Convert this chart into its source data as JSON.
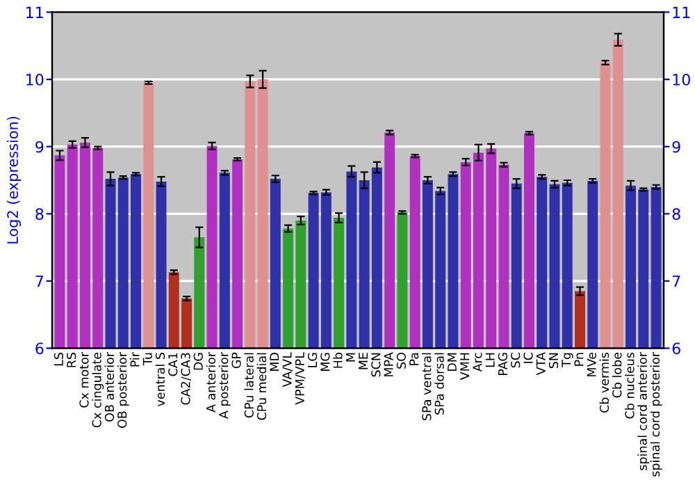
{
  "chart_data": {
    "type": "bar",
    "ylabel": "Log2 (expression)",
    "categories": [
      "LS",
      "RS",
      "Cx motor",
      "Cx cingulate",
      "OB anterior",
      "OB posterior",
      "Pir",
      "Tu",
      "ventral S",
      "CA1",
      "CA2/CA3",
      "DG",
      "A anterior",
      "A posterior",
      "GP",
      "CPu lateral",
      "CPu medial",
      "MD",
      "VA/VL",
      "VPM/VPL",
      "LG",
      "MG",
      "Hb",
      "M",
      "ME",
      "SCN",
      "MPA",
      "SO",
      "Pa",
      "SPa ventral",
      "SPa dorsal",
      "DM",
      "VMH",
      "Arc",
      "LH",
      "PAG",
      "SC",
      "IC",
      "VTA",
      "SN",
      "Tg",
      "Pn",
      "MVe",
      "Cb vermis",
      "Cb lobe",
      "Cb nucleus",
      "spinal cord anterior",
      "spinal cord posterior"
    ],
    "values": [
      8.87,
      9.03,
      9.06,
      8.98,
      8.52,
      8.54,
      8.59,
      9.95,
      8.48,
      7.13,
      6.74,
      7.65,
      9.01,
      8.61,
      8.81,
      9.97,
      10.0,
      8.52,
      7.78,
      7.9,
      8.31,
      8.32,
      7.94,
      8.63,
      8.5,
      8.69,
      9.21,
      8.02,
      8.86,
      8.5,
      8.34,
      8.59,
      8.77,
      8.91,
      8.97,
      8.73,
      8.45,
      9.2,
      8.55,
      8.44,
      8.46,
      6.85,
      8.49,
      10.25,
      10.59,
      8.42,
      8.36,
      8.4
    ],
    "errors": [
      0.07,
      0.05,
      0.07,
      0.02,
      0.1,
      0.02,
      0.02,
      0.02,
      0.07,
      0.03,
      0.03,
      0.15,
      0.05,
      0.03,
      0.02,
      0.09,
      0.13,
      0.05,
      0.05,
      0.06,
      0.02,
      0.04,
      0.07,
      0.08,
      0.12,
      0.08,
      0.03,
      0.02,
      0.02,
      0.05,
      0.05,
      0.03,
      0.05,
      0.12,
      0.07,
      0.03,
      0.07,
      0.02,
      0.03,
      0.05,
      0.04,
      0.06,
      0.03,
      0.03,
      0.09,
      0.07,
      0.02,
      0.03
    ],
    "colors": [
      "#b030c0",
      "#b030c0",
      "#b030c0",
      "#b030c0",
      "#3030a8",
      "#3030a8",
      "#3030a8",
      "#e09090",
      "#3030a8",
      "#b03020",
      "#b03020",
      "#30a030",
      "#b030c0",
      "#3030a8",
      "#b030c0",
      "#e09090",
      "#e09090",
      "#3030a8",
      "#30a030",
      "#30a030",
      "#3030a8",
      "#3030a8",
      "#30a030",
      "#3030a8",
      "#3030a8",
      "#3030a8",
      "#b030c0",
      "#30a030",
      "#b030c0",
      "#3030a8",
      "#3030a8",
      "#3030a8",
      "#b030c0",
      "#b030c0",
      "#b030c0",
      "#b030c0",
      "#3030a8",
      "#b030c0",
      "#3030a8",
      "#3030a8",
      "#3030a8",
      "#b03020",
      "#3030a8",
      "#e09090",
      "#e09090",
      "#3030a8",
      "#3030a8",
      "#3030a8"
    ],
    "ylim": [
      6,
      11
    ],
    "yticks": [
      6,
      7,
      8,
      9,
      10,
      11
    ],
    "y2lim": [
      6,
      11
    ],
    "y2ticks": [
      6,
      7,
      8,
      9,
      10,
      11
    ],
    "grid": "y"
  }
}
